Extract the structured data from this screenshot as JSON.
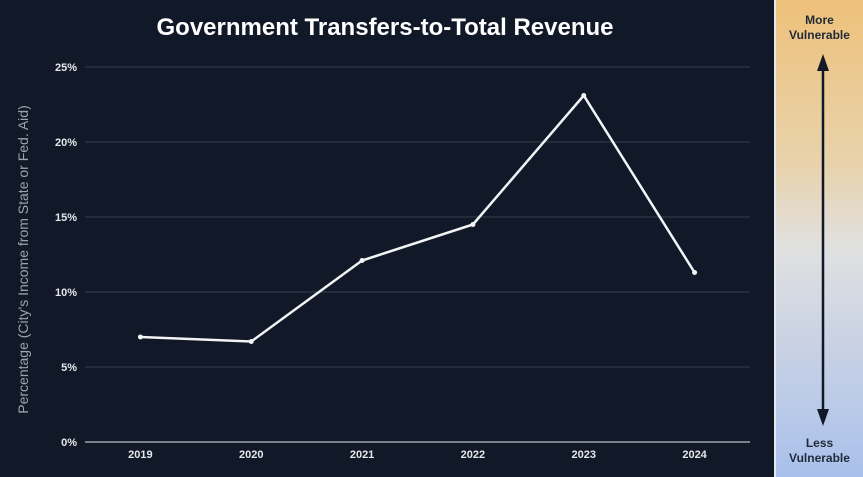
{
  "chart_data": {
    "type": "line",
    "title": "Government Transfers-to-Total Revenue",
    "xlabel": "",
    "ylabel": "Percentage (City's Income from State or Fed. Aid)",
    "categories": [
      "2019",
      "2020",
      "2021",
      "2022",
      "2023",
      "2024"
    ],
    "values": [
      7.0,
      6.7,
      12.1,
      14.5,
      23.1,
      11.3
    ],
    "ylim": [
      0,
      25
    ],
    "yticks": [
      0,
      5,
      10,
      15,
      20,
      25
    ],
    "ytick_labels": [
      "0%",
      "5%",
      "10%",
      "15%",
      "20%",
      "25%"
    ],
    "grid": true,
    "colors": {
      "line": "#f3f4f6",
      "grid": "#374151",
      "background": "#111827"
    }
  },
  "panel": {
    "top_label_1": "More",
    "top_label_2": "Vulnerable",
    "bottom_label_1": "Less",
    "bottom_label_2": "Vulnerable"
  }
}
